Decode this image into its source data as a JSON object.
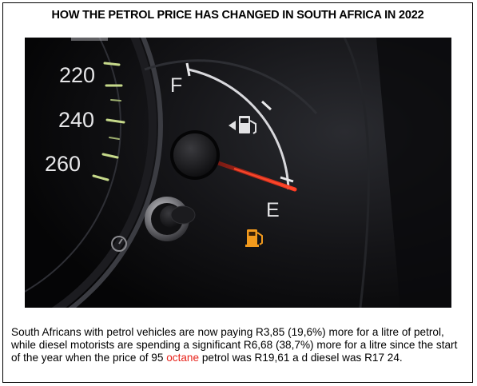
{
  "title": "HOW THE PETROL PRICE HAS CHANGED IN SOUTH AFRICA IN 2022",
  "dashboard": {
    "speed_labels": [
      "220",
      "240",
      "260"
    ],
    "fuel_full_label": "F",
    "fuel_empty_label": "E",
    "needle_color": "#e0241a",
    "warning_color": "#f29a1d"
  },
  "caption": {
    "part1": "South Africans with petrol vehicles are now paying R3,85 (19,6%) more for a litre of petrol, while diesel motorists are spending a significant R6,68 (38,7%) more for a litre since the start of the year when the price of 95 ",
    "highlight": "octane",
    "part2": " petrol was R19,61 a  d diesel was R17 24."
  }
}
